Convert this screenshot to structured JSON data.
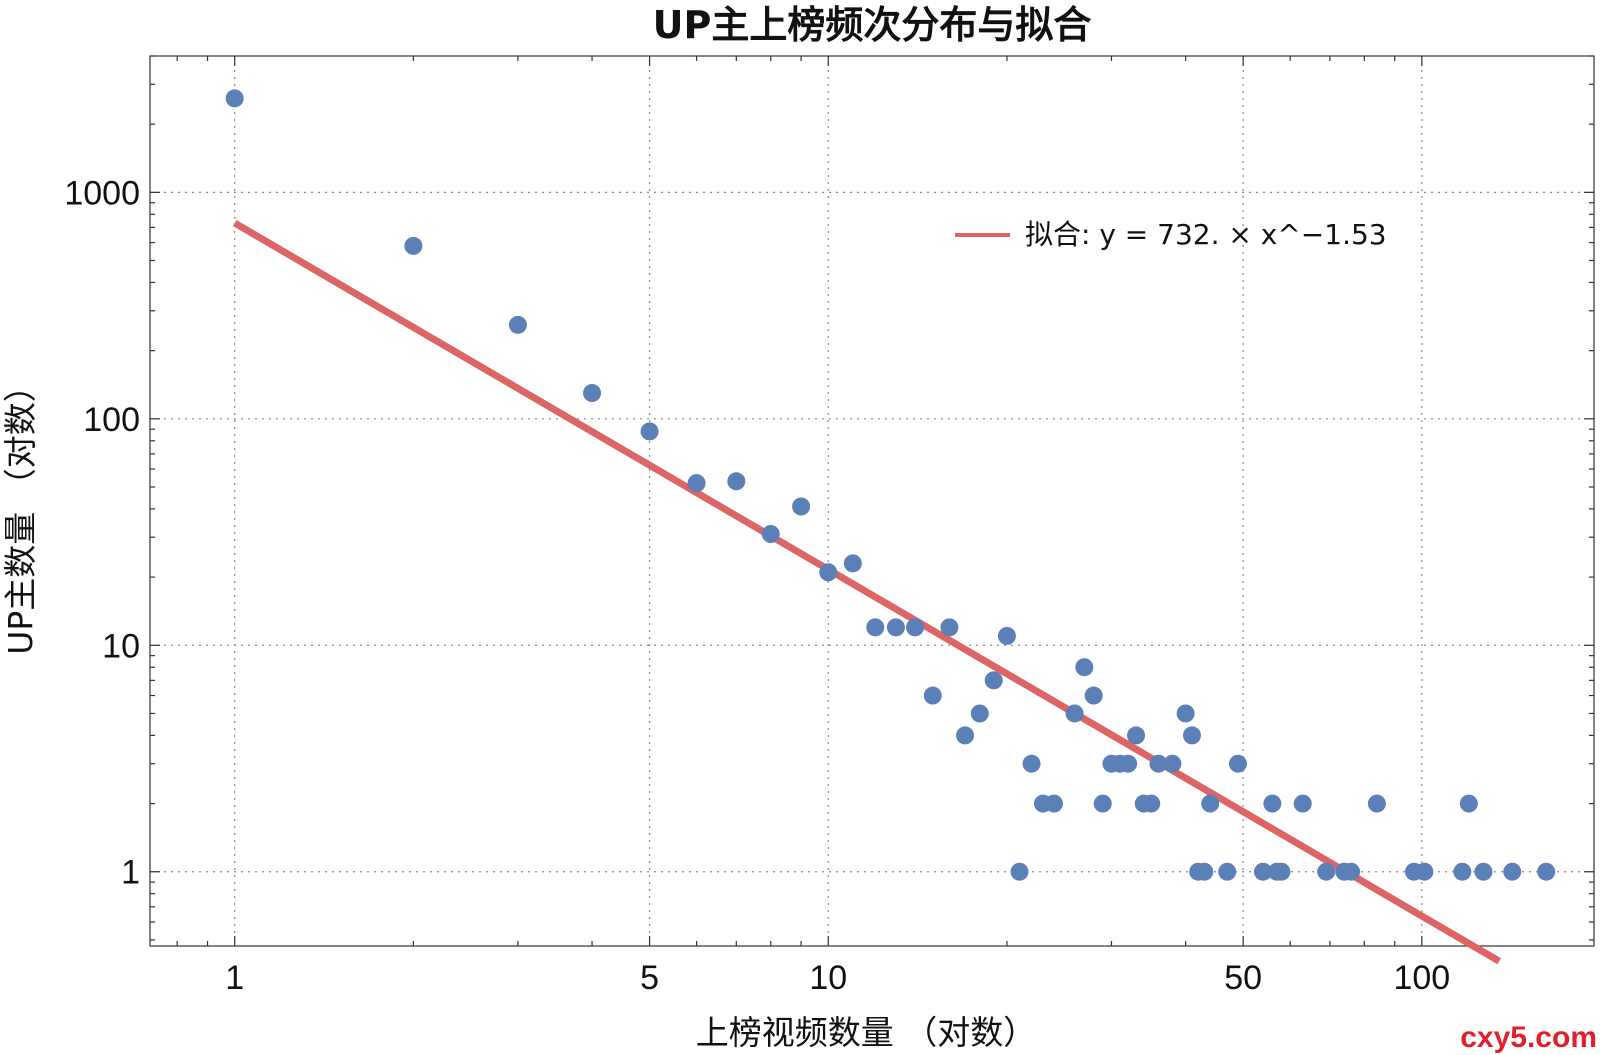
{
  "chart_data": {
    "type": "scatter",
    "title": "UP主上榜频次分布与拟合",
    "xlabel": "上榜视频数量 （对数）",
    "ylabel": "UP主数量 （对数）",
    "xscale": "log",
    "yscale": "log",
    "xlim": [
      0.72,
      195
    ],
    "ylim": [
      0.47,
      4000
    ],
    "grid": true,
    "x_ticks": [
      1,
      5,
      10,
      50,
      100
    ],
    "x_tick_labels": [
      "1",
      "5",
      "10",
      "50",
      "100"
    ],
    "y_ticks": [
      1,
      10,
      100,
      1000
    ],
    "y_tick_labels": [
      "1",
      "10",
      "100",
      "1000"
    ],
    "series": [
      {
        "name": "UP主数量",
        "kind": "scatter",
        "color": "#5b80b7",
        "points": [
          [
            1,
            2600
          ],
          [
            2,
            580
          ],
          [
            3,
            260
          ],
          [
            4,
            130
          ],
          [
            5,
            88
          ],
          [
            6,
            52
          ],
          [
            7,
            53
          ],
          [
            8,
            31
          ],
          [
            9,
            41
          ],
          [
            10,
            21
          ],
          [
            11,
            23
          ],
          [
            12,
            12
          ],
          [
            13,
            12
          ],
          [
            14,
            12
          ],
          [
            15,
            6
          ],
          [
            16,
            12
          ],
          [
            17,
            4
          ],
          [
            18,
            5
          ],
          [
            19,
            7
          ],
          [
            20,
            11
          ],
          [
            21,
            1
          ],
          [
            22,
            3
          ],
          [
            23,
            2
          ],
          [
            24,
            2
          ],
          [
            26,
            5
          ],
          [
            27,
            8
          ],
          [
            28,
            6
          ],
          [
            29,
            2
          ],
          [
            30,
            3
          ],
          [
            31,
            3
          ],
          [
            32,
            3
          ],
          [
            33,
            4
          ],
          [
            34,
            2
          ],
          [
            35,
            2
          ],
          [
            36,
            3
          ],
          [
            38,
            3
          ],
          [
            40,
            5
          ],
          [
            41,
            4
          ],
          [
            42,
            1
          ],
          [
            43,
            1
          ],
          [
            44,
            2
          ],
          [
            47,
            1
          ],
          [
            49,
            3
          ],
          [
            54,
            1
          ],
          [
            56,
            2
          ],
          [
            57,
            1
          ],
          [
            58,
            1
          ],
          [
            63,
            2
          ],
          [
            69,
            1
          ],
          [
            74,
            1
          ],
          [
            76,
            1
          ],
          [
            84,
            2
          ],
          [
            97,
            1
          ],
          [
            101,
            1
          ],
          [
            117,
            1
          ],
          [
            120,
            2
          ],
          [
            127,
            1
          ],
          [
            142,
            1
          ],
          [
            162,
            1
          ]
        ]
      },
      {
        "name": "拟合: y = 732. × x^−1.53",
        "kind": "line",
        "color": "#dd6566",
        "coefficient": 732,
        "exponent": -1.53,
        "x_range": [
          1,
          135
        ]
      }
    ],
    "legend": {
      "position": "top-right",
      "entries": [
        "拟合: y = 732. × x^−1.53"
      ]
    }
  },
  "watermark": "cxy5.com"
}
